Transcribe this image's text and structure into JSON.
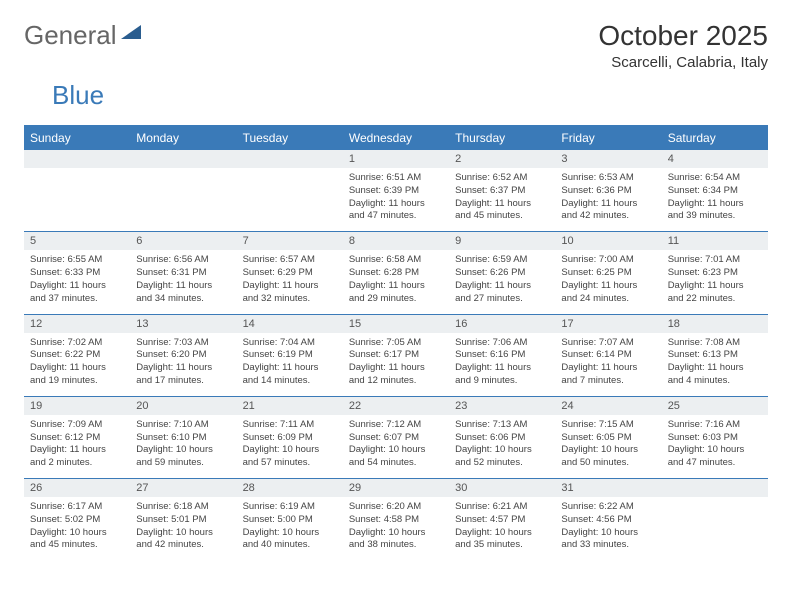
{
  "logo": {
    "part1": "General",
    "part2": "Blue"
  },
  "title": "October 2025",
  "location": "Scarcelli, Calabria, Italy",
  "colors": {
    "header_bg": "#3a7ab8",
    "header_text": "#ffffff",
    "daynum_bg": "#eceff1",
    "text": "#444444",
    "border": "#3a7ab8"
  },
  "dayNames": [
    "Sunday",
    "Monday",
    "Tuesday",
    "Wednesday",
    "Thursday",
    "Friday",
    "Saturday"
  ],
  "weeks": [
    [
      {
        "n": "",
        "lines": []
      },
      {
        "n": "",
        "lines": []
      },
      {
        "n": "",
        "lines": []
      },
      {
        "n": "1",
        "lines": [
          "Sunrise: 6:51 AM",
          "Sunset: 6:39 PM",
          "Daylight: 11 hours and 47 minutes."
        ]
      },
      {
        "n": "2",
        "lines": [
          "Sunrise: 6:52 AM",
          "Sunset: 6:37 PM",
          "Daylight: 11 hours and 45 minutes."
        ]
      },
      {
        "n": "3",
        "lines": [
          "Sunrise: 6:53 AM",
          "Sunset: 6:36 PM",
          "Daylight: 11 hours and 42 minutes."
        ]
      },
      {
        "n": "4",
        "lines": [
          "Sunrise: 6:54 AM",
          "Sunset: 6:34 PM",
          "Daylight: 11 hours and 39 minutes."
        ]
      }
    ],
    [
      {
        "n": "5",
        "lines": [
          "Sunrise: 6:55 AM",
          "Sunset: 6:33 PM",
          "Daylight: 11 hours and 37 minutes."
        ]
      },
      {
        "n": "6",
        "lines": [
          "Sunrise: 6:56 AM",
          "Sunset: 6:31 PM",
          "Daylight: 11 hours and 34 minutes."
        ]
      },
      {
        "n": "7",
        "lines": [
          "Sunrise: 6:57 AM",
          "Sunset: 6:29 PM",
          "Daylight: 11 hours and 32 minutes."
        ]
      },
      {
        "n": "8",
        "lines": [
          "Sunrise: 6:58 AM",
          "Sunset: 6:28 PM",
          "Daylight: 11 hours and 29 minutes."
        ]
      },
      {
        "n": "9",
        "lines": [
          "Sunrise: 6:59 AM",
          "Sunset: 6:26 PM",
          "Daylight: 11 hours and 27 minutes."
        ]
      },
      {
        "n": "10",
        "lines": [
          "Sunrise: 7:00 AM",
          "Sunset: 6:25 PM",
          "Daylight: 11 hours and 24 minutes."
        ]
      },
      {
        "n": "11",
        "lines": [
          "Sunrise: 7:01 AM",
          "Sunset: 6:23 PM",
          "Daylight: 11 hours and 22 minutes."
        ]
      }
    ],
    [
      {
        "n": "12",
        "lines": [
          "Sunrise: 7:02 AM",
          "Sunset: 6:22 PM",
          "Daylight: 11 hours and 19 minutes."
        ]
      },
      {
        "n": "13",
        "lines": [
          "Sunrise: 7:03 AM",
          "Sunset: 6:20 PM",
          "Daylight: 11 hours and 17 minutes."
        ]
      },
      {
        "n": "14",
        "lines": [
          "Sunrise: 7:04 AM",
          "Sunset: 6:19 PM",
          "Daylight: 11 hours and 14 minutes."
        ]
      },
      {
        "n": "15",
        "lines": [
          "Sunrise: 7:05 AM",
          "Sunset: 6:17 PM",
          "Daylight: 11 hours and 12 minutes."
        ]
      },
      {
        "n": "16",
        "lines": [
          "Sunrise: 7:06 AM",
          "Sunset: 6:16 PM",
          "Daylight: 11 hours and 9 minutes."
        ]
      },
      {
        "n": "17",
        "lines": [
          "Sunrise: 7:07 AM",
          "Sunset: 6:14 PM",
          "Daylight: 11 hours and 7 minutes."
        ]
      },
      {
        "n": "18",
        "lines": [
          "Sunrise: 7:08 AM",
          "Sunset: 6:13 PM",
          "Daylight: 11 hours and 4 minutes."
        ]
      }
    ],
    [
      {
        "n": "19",
        "lines": [
          "Sunrise: 7:09 AM",
          "Sunset: 6:12 PM",
          "Daylight: 11 hours and 2 minutes."
        ]
      },
      {
        "n": "20",
        "lines": [
          "Sunrise: 7:10 AM",
          "Sunset: 6:10 PM",
          "Daylight: 10 hours and 59 minutes."
        ]
      },
      {
        "n": "21",
        "lines": [
          "Sunrise: 7:11 AM",
          "Sunset: 6:09 PM",
          "Daylight: 10 hours and 57 minutes."
        ]
      },
      {
        "n": "22",
        "lines": [
          "Sunrise: 7:12 AM",
          "Sunset: 6:07 PM",
          "Daylight: 10 hours and 54 minutes."
        ]
      },
      {
        "n": "23",
        "lines": [
          "Sunrise: 7:13 AM",
          "Sunset: 6:06 PM",
          "Daylight: 10 hours and 52 minutes."
        ]
      },
      {
        "n": "24",
        "lines": [
          "Sunrise: 7:15 AM",
          "Sunset: 6:05 PM",
          "Daylight: 10 hours and 50 minutes."
        ]
      },
      {
        "n": "25",
        "lines": [
          "Sunrise: 7:16 AM",
          "Sunset: 6:03 PM",
          "Daylight: 10 hours and 47 minutes."
        ]
      }
    ],
    [
      {
        "n": "26",
        "lines": [
          "Sunrise: 6:17 AM",
          "Sunset: 5:02 PM",
          "Daylight: 10 hours and 45 minutes."
        ]
      },
      {
        "n": "27",
        "lines": [
          "Sunrise: 6:18 AM",
          "Sunset: 5:01 PM",
          "Daylight: 10 hours and 42 minutes."
        ]
      },
      {
        "n": "28",
        "lines": [
          "Sunrise: 6:19 AM",
          "Sunset: 5:00 PM",
          "Daylight: 10 hours and 40 minutes."
        ]
      },
      {
        "n": "29",
        "lines": [
          "Sunrise: 6:20 AM",
          "Sunset: 4:58 PM",
          "Daylight: 10 hours and 38 minutes."
        ]
      },
      {
        "n": "30",
        "lines": [
          "Sunrise: 6:21 AM",
          "Sunset: 4:57 PM",
          "Daylight: 10 hours and 35 minutes."
        ]
      },
      {
        "n": "31",
        "lines": [
          "Sunrise: 6:22 AM",
          "Sunset: 4:56 PM",
          "Daylight: 10 hours and 33 minutes."
        ]
      },
      {
        "n": "",
        "lines": []
      }
    ]
  ]
}
